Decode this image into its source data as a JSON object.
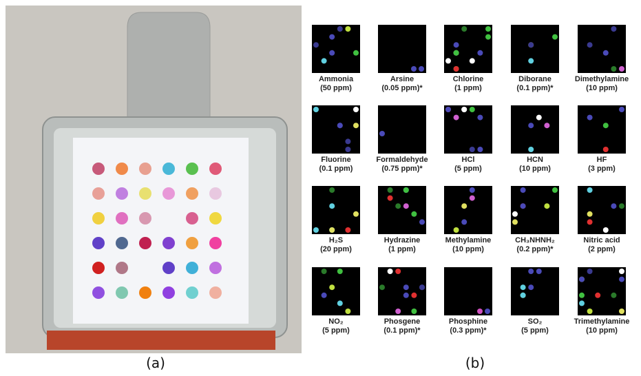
{
  "figure": {
    "labels": {
      "a": "(a)",
      "b": "(b)"
    },
    "panels": [
      {
        "name": "Ammonia",
        "conc": "(50 ppm)"
      },
      {
        "name": "Arsine",
        "conc": "(0.05 ppm)*"
      },
      {
        "name": "Chlorine",
        "conc": "(1 ppm)"
      },
      {
        "name": "Diborane",
        "conc": "(0.1 ppm)*"
      },
      {
        "name": "Dimethylamine",
        "conc": "(10 ppm)"
      },
      {
        "name": "Fluorine",
        "conc": "(0.1 ppm)"
      },
      {
        "name": "Formaldehyde",
        "conc": "(0.75 ppm)*"
      },
      {
        "name": "HCl",
        "conc": "(5 ppm)"
      },
      {
        "name": "HCN",
        "conc": "(10 ppm)"
      },
      {
        "name": "HF",
        "conc": "(3 ppm)"
      },
      {
        "name": "H₂S",
        "conc": "(20 ppm)"
      },
      {
        "name": "Hydrazine",
        "conc": "(1 ppm)"
      },
      {
        "name": "Methylamine",
        "conc": "(10 ppm)"
      },
      {
        "name": "CH₃NHNH₂",
        "conc": "(0.2 ppm)*"
      },
      {
        "name": "Nitric acid",
        "conc": "(2 ppm)"
      },
      {
        "name": "NO₂",
        "conc": "(5 ppm)"
      },
      {
        "name": "Phosgene",
        "conc": "(0.1 ppm)*"
      },
      {
        "name": "Phosphine",
        "conc": "(0.3 ppm)*"
      },
      {
        "name": "SO₂",
        "conc": "(5 ppm)"
      },
      {
        "name": "Trimethylamine",
        "conc": "(10 ppm)"
      }
    ]
  }
}
